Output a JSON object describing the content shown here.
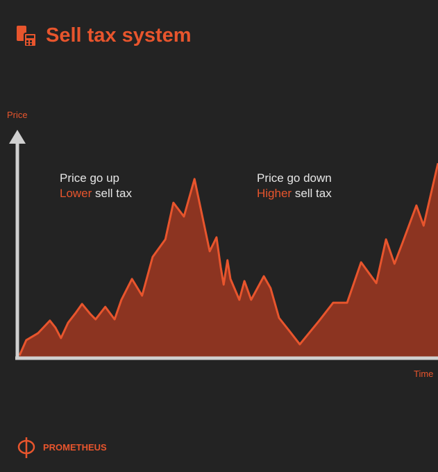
{
  "chart_data": {
    "type": "area",
    "title": "Sell tax system",
    "y_label": "Price",
    "x_label": "Time",
    "color": "#e8552d",
    "fill": "#8c3421",
    "xlim": [
      0,
      100
    ],
    "ylim": [
      0,
      100
    ],
    "x": [
      1.0,
      2.6,
      5.4,
      8.2,
      9.5,
      10.8,
      12.5,
      14.4,
      15.8,
      17.7,
      19.0,
      21.3,
      23.5,
      25.1,
      27.6,
      30.0,
      32.5,
      35.5,
      37.4,
      39.9,
      42.4,
      46.0,
      47.6,
      48.6,
      49.3,
      50.2,
      50.9,
      53.0,
      54.2,
      55.8,
      58.8,
      60.4,
      62.4,
      65.0,
      67.3,
      71.9,
      75.2,
      78.5,
      81.8,
      85.4,
      87.7,
      89.7,
      91.6,
      94.9,
      96.6,
      100
    ],
    "values": [
      1,
      8.3,
      11.7,
      17.7,
      14.3,
      9.3,
      16.7,
      21.7,
      25.7,
      21,
      18.3,
      24.3,
      18.3,
      27.7,
      37.7,
      29.7,
      48.3,
      56.7,
      74.3,
      67.7,
      85.7,
      51,
      57.7,
      43.3,
      35,
      46.7,
      37.7,
      27.7,
      36.7,
      27.7,
      39,
      33.3,
      19,
      12.3,
      6.3,
      17.7,
      26.3,
      26.3,
      45.7,
      35.7,
      56.7,
      45,
      55,
      73,
      63.3,
      93.3
    ],
    "annotations": [
      {
        "line1": "Price go up",
        "highlight": "Lower",
        "text": "sell tax"
      },
      {
        "line1": "Price go down",
        "highlight": "Higher",
        "text": "sell tax"
      }
    ],
    "brand": "PROMETHEUS"
  }
}
